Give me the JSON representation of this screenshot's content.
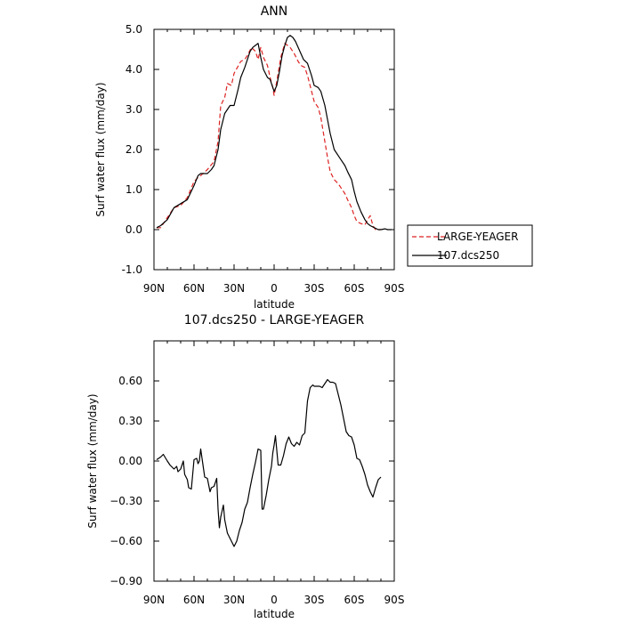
{
  "chart_data": [
    {
      "type": "line",
      "title": "ANN",
      "xlabel": "latitude",
      "ylabel": "Surf water flux (mm/day)",
      "xlim": [
        90,
        -90
      ],
      "ylim": [
        -1.0,
        5.0
      ],
      "xticks": [
        90,
        60,
        30,
        0,
        -30,
        -60,
        -90
      ],
      "xtick_labels": [
        "90N",
        "60N",
        "30N",
        "0",
        "30S",
        "60S",
        "90S"
      ],
      "yticks": [
        -1.0,
        0.0,
        1.0,
        2.0,
        3.0,
        4.0,
        5.0
      ],
      "ytick_labels": [
        "-1.0",
        "0.0",
        "1.0",
        "2.0",
        "3.0",
        "4.0",
        "5.0"
      ],
      "legend_position": "right",
      "colors": {
        "large_yeager": "#dd2222",
        "dcs250": "#000000"
      },
      "series": [
        {
          "name": "LARGE-YEAGER",
          "style": "dashed",
          "x": [
            88,
            85,
            80,
            75,
            70,
            65,
            60,
            57,
            55,
            50,
            45,
            42,
            40,
            37,
            35,
            32,
            30,
            25,
            22,
            20,
            17,
            14,
            12,
            10,
            8,
            5,
            3,
            1,
            0,
            -2,
            -5,
            -8,
            -10,
            -12,
            -15,
            -18,
            -20,
            -23,
            -25,
            -30,
            -33,
            -35,
            -38,
            -40,
            -42,
            -45,
            -48,
            -50,
            -53,
            -55,
            -58,
            -60,
            -62,
            -65,
            -68,
            -70,
            -72,
            -74,
            -76,
            -78,
            -80
          ],
          "y": [
            0.05,
            0.05,
            0.3,
            0.55,
            0.6,
            0.8,
            1.2,
            1.3,
            1.35,
            1.5,
            1.7,
            2.2,
            3.1,
            3.3,
            3.65,
            3.6,
            3.9,
            4.2,
            4.25,
            4.35,
            4.55,
            4.45,
            4.25,
            4.55,
            4.3,
            4.1,
            3.8,
            3.55,
            3.35,
            3.7,
            4.3,
            4.65,
            4.6,
            4.55,
            4.4,
            4.2,
            4.1,
            4.05,
            3.85,
            3.2,
            3.05,
            2.8,
            2.2,
            1.8,
            1.45,
            1.25,
            1.15,
            1.05,
            0.9,
            0.75,
            0.55,
            0.35,
            0.2,
            0.15,
            0.12,
            0.25,
            0.35,
            0.1,
            0.0,
            0.0,
            0.0
          ]
        },
        {
          "name": "107.dcs250",
          "style": "solid",
          "x": [
            88,
            85,
            80,
            75,
            70,
            65,
            60,
            57,
            55,
            50,
            47,
            45,
            42,
            40,
            37,
            35,
            33,
            30,
            27,
            25,
            22,
            20,
            18,
            16,
            14,
            12,
            10,
            8,
            5,
            3,
            1,
            0,
            -2,
            -4,
            -6,
            -8,
            -10,
            -12,
            -14,
            -16,
            -18,
            -20,
            -22,
            -25,
            -28,
            -30,
            -33,
            -35,
            -38,
            -40,
            -42,
            -45,
            -48,
            -50,
            -53,
            -55,
            -58,
            -60,
            -62,
            -65,
            -68,
            -70,
            -72,
            -75,
            -78,
            -80,
            -83,
            -85,
            -88
          ],
          "y": [
            0.05,
            0.1,
            0.25,
            0.55,
            0.65,
            0.75,
            1.1,
            1.35,
            1.4,
            1.4,
            1.5,
            1.6,
            2.0,
            2.5,
            2.9,
            3.0,
            3.1,
            3.1,
            3.5,
            3.8,
            4.05,
            4.25,
            4.45,
            4.55,
            4.6,
            4.65,
            4.3,
            4.0,
            3.8,
            3.75,
            3.55,
            3.45,
            3.6,
            3.95,
            4.35,
            4.6,
            4.8,
            4.85,
            4.8,
            4.7,
            4.55,
            4.4,
            4.25,
            4.15,
            3.85,
            3.6,
            3.55,
            3.45,
            3.1,
            2.75,
            2.4,
            2.0,
            1.85,
            1.75,
            1.6,
            1.45,
            1.25,
            0.95,
            0.7,
            0.45,
            0.25,
            0.15,
            0.1,
            0.05,
            0.0,
            0.0,
            0.02,
            0.0,
            0.0
          ]
        }
      ]
    },
    {
      "type": "line",
      "title": "107.dcs250 - LARGE-YEAGER",
      "xlabel": "latitude",
      "ylabel": "Surf water flux (mm/day)",
      "xlim": [
        90,
        -90
      ],
      "ylim": [
        -0.9,
        0.9
      ],
      "xticks": [
        90,
        60,
        30,
        0,
        -30,
        -60,
        -90
      ],
      "xtick_labels": [
        "90N",
        "60N",
        "30N",
        "0",
        "30S",
        "60S",
        "90S"
      ],
      "yticks": [
        -0.9,
        -0.6,
        -0.3,
        0.0,
        0.3,
        0.6
      ],
      "ytick_labels": [
        "−0.90",
        "−0.60",
        "−0.30",
        "0.00",
        "0.30",
        "0.60"
      ],
      "colors": {
        "line": "#000000"
      },
      "series": [
        {
          "x": [
            88,
            85,
            83,
            80,
            78,
            75,
            73,
            72,
            70,
            68,
            67,
            65,
            64,
            62,
            60,
            58,
            57,
            56,
            55,
            53,
            52,
            50,
            48,
            47,
            45,
            43,
            42,
            41,
            40,
            38,
            37,
            35,
            33,
            31,
            30,
            28,
            26,
            24,
            22,
            20,
            18,
            16,
            14,
            12,
            10,
            9,
            8,
            6,
            4,
            2,
            1,
            0,
            -1,
            -3,
            -5,
            -7,
            -9,
            -11,
            -13,
            -15,
            -17,
            -19,
            -21,
            -23,
            -25,
            -27,
            -29,
            -30,
            -32,
            -34,
            -36,
            -38,
            -40,
            -42,
            -44,
            -46,
            -48,
            -50,
            -52,
            -54,
            -56,
            -58,
            -60,
            -62,
            -64,
            -66,
            -68,
            -70,
            -72,
            -74,
            -76,
            -78,
            -80
          ],
          "y": [
            0.01,
            0.03,
            0.05,
            0.0,
            -0.03,
            -0.06,
            -0.04,
            -0.08,
            -0.06,
            0.0,
            -0.1,
            -0.14,
            -0.2,
            -0.21,
            0.01,
            0.02,
            -0.02,
            0.0,
            0.09,
            -0.05,
            -0.12,
            -0.13,
            -0.23,
            -0.2,
            -0.19,
            -0.13,
            -0.36,
            -0.5,
            -0.42,
            -0.33,
            -0.44,
            -0.54,
            -0.58,
            -0.62,
            -0.64,
            -0.6,
            -0.52,
            -0.46,
            -0.36,
            -0.31,
            -0.2,
            -0.1,
            -0.01,
            0.09,
            0.08,
            -0.36,
            -0.36,
            -0.26,
            -0.14,
            -0.04,
            0.06,
            0.12,
            0.19,
            -0.03,
            -0.03,
            0.04,
            0.13,
            0.18,
            0.13,
            0.11,
            0.14,
            0.12,
            0.19,
            0.21,
            0.45,
            0.55,
            0.57,
            0.56,
            0.56,
            0.56,
            0.55,
            0.58,
            0.61,
            0.59,
            0.59,
            0.58,
            0.5,
            0.42,
            0.32,
            0.22,
            0.19,
            0.18,
            0.12,
            0.02,
            0.01,
            -0.04,
            -0.1,
            -0.18,
            -0.23,
            -0.27,
            -0.2,
            -0.14,
            -0.12
          ]
        }
      ]
    }
  ]
}
